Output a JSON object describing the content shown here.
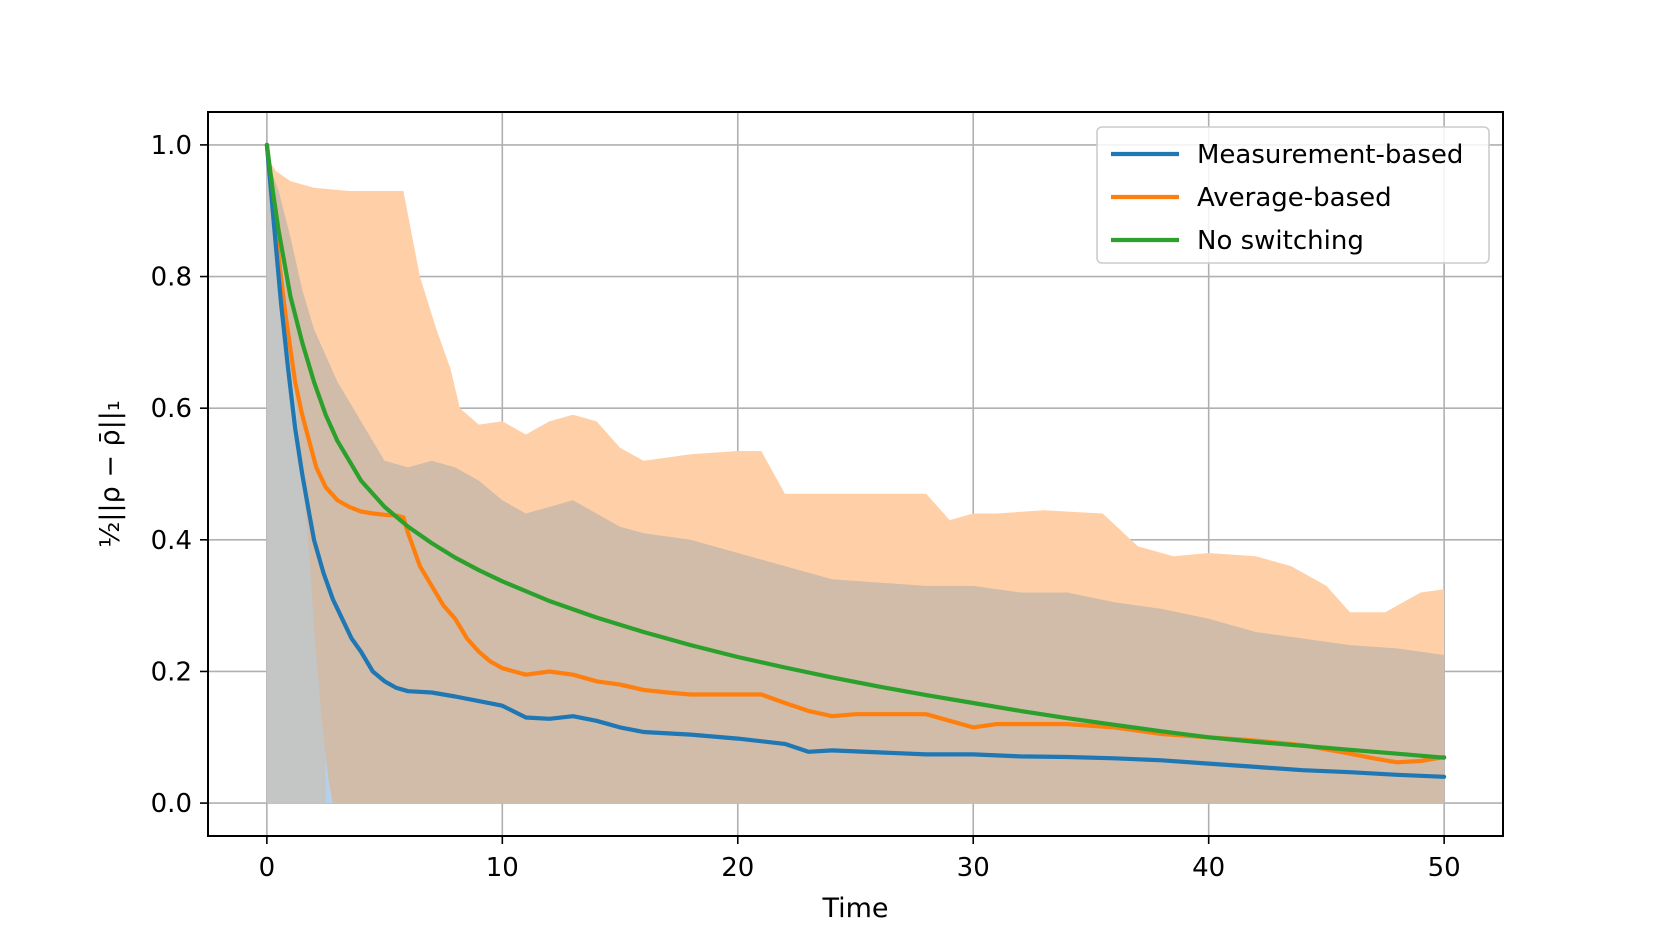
{
  "chart_data": {
    "type": "line",
    "title": "",
    "xlabel": "Time",
    "ylabel": "½||ρ − ρ̄||₁",
    "xlim": [
      -2.5,
      52.5
    ],
    "ylim": [
      -0.05,
      1.05
    ],
    "xticks": [
      0,
      10,
      20,
      30,
      40,
      50
    ],
    "xtick_labels": [
      "0",
      "10",
      "20",
      "30",
      "40",
      "50"
    ],
    "yticks": [
      0.0,
      0.2,
      0.4,
      0.6,
      0.8,
      1.0
    ],
    "ytick_labels": [
      "0.0",
      "0.2",
      "0.4",
      "0.6",
      "0.8",
      "1.0"
    ],
    "grid": true,
    "legend_position": "top-right",
    "series": [
      {
        "name": "Measurement-based",
        "color": "#1f77b4",
        "x": [
          0,
          0.3,
          0.6,
          0.9,
          1.2,
          1.5,
          1.8,
          2.0,
          2.4,
          2.8,
          3.2,
          3.6,
          4.0,
          4.5,
          5.0,
          5.5,
          6.0,
          7.0,
          8.0,
          9.0,
          10.0,
          11.0,
          12.0,
          13.0,
          14.0,
          15.0,
          16.0,
          18.0,
          20.0,
          22.0,
          23.0,
          24.0,
          26.0,
          28.0,
          30.0,
          32.0,
          34.0,
          36.0,
          38.0,
          40.0,
          42.0,
          44.0,
          46.0,
          48.0,
          50.0
        ],
        "y": [
          1.0,
          0.88,
          0.76,
          0.66,
          0.57,
          0.5,
          0.44,
          0.4,
          0.35,
          0.31,
          0.28,
          0.25,
          0.23,
          0.2,
          0.185,
          0.175,
          0.17,
          0.168,
          0.162,
          0.155,
          0.148,
          0.13,
          0.128,
          0.132,
          0.125,
          0.115,
          0.108,
          0.104,
          0.098,
          0.09,
          0.078,
          0.08,
          0.077,
          0.074,
          0.074,
          0.071,
          0.07,
          0.068,
          0.065,
          0.06,
          0.055,
          0.05,
          0.047,
          0.043,
          0.04
        ],
        "band_upper": [
          0.98,
          0.93,
          0.85,
          0.74,
          0.62,
          0.5,
          0.38,
          0.27,
          0.14,
          0.04,
          0.0
        ],
        "band_lower": [
          0.0,
          0.0,
          0.0,
          0.0,
          0.0,
          0.0,
          0.0,
          0.0,
          0.0,
          0.0,
          0.0
        ],
        "band_x": [
          0,
          0.3,
          0.6,
          0.9,
          1.2,
          1.5,
          1.8,
          2.0,
          2.3,
          2.6,
          2.8
        ]
      },
      {
        "name": "Average-based",
        "color": "#ff7f0e",
        "x": [
          0,
          0.2,
          0.4,
          0.6,
          0.8,
          1.0,
          1.2,
          1.5,
          1.8,
          2.1,
          2.5,
          3.0,
          3.5,
          4.0,
          4.5,
          5.0,
          5.5,
          5.8,
          6.0,
          6.5,
          7.0,
          7.5,
          8.0,
          8.5,
          9.0,
          9.5,
          10.0,
          10.5,
          11.0,
          12.0,
          13.0,
          14.0,
          15.0,
          16.0,
          17.0,
          18.0,
          19.0,
          20.0,
          21.0,
          22.0,
          23.0,
          24.0,
          25.0,
          26.0,
          28.0,
          29.0,
          30.0,
          31.0,
          32.0,
          34.0,
          36.0,
          38.0,
          40.0,
          42.0,
          44.0,
          46.0,
          47.0,
          48.0,
          49.0,
          50.0
        ],
        "y": [
          1.0,
          0.93,
          0.86,
          0.8,
          0.74,
          0.69,
          0.64,
          0.59,
          0.55,
          0.51,
          0.48,
          0.46,
          0.45,
          0.443,
          0.44,
          0.438,
          0.437,
          0.434,
          0.41,
          0.36,
          0.33,
          0.3,
          0.28,
          0.25,
          0.23,
          0.215,
          0.205,
          0.2,
          0.195,
          0.2,
          0.195,
          0.185,
          0.18,
          0.172,
          0.168,
          0.165,
          0.165,
          0.165,
          0.165,
          0.152,
          0.14,
          0.132,
          0.135,
          0.135,
          0.135,
          0.125,
          0.115,
          0.12,
          0.12,
          0.12,
          0.115,
          0.105,
          0.1,
          0.095,
          0.088,
          0.075,
          0.068,
          0.062,
          0.064,
          0.07
        ],
        "band_upper": [
          0.98,
          0.96,
          0.945,
          0.935,
          0.93,
          0.93,
          0.93,
          0.8,
          0.72,
          0.66,
          0.6,
          0.575,
          0.58,
          0.56,
          0.58,
          0.59,
          0.58,
          0.54,
          0.52,
          0.53,
          0.535,
          0.535,
          0.47,
          0.47,
          0.47,
          0.47,
          0.43,
          0.44,
          0.44,
          0.445,
          0.44,
          0.39,
          0.375,
          0.38,
          0.375,
          0.36,
          0.33,
          0.29,
          0.29,
          0.32,
          0.325
        ],
        "band_lower": [
          0.0,
          0.0,
          0.0,
          0.0,
          0.0,
          0.0,
          0.0,
          0.0,
          0.0,
          0.0,
          0.0,
          0.0,
          0.0,
          0.0,
          0.0,
          0.0,
          0.0,
          0.0,
          0.0,
          0.0,
          0.0,
          0.0,
          0.0,
          0.0,
          0.0,
          0.0,
          0.0,
          0.0,
          0.0,
          0.0,
          0.0,
          0.0,
          0.0,
          0.0,
          0.0,
          0.0,
          0.0,
          0.0,
          0.0,
          0.0,
          0.0
        ],
        "band_x": [
          0,
          0.4,
          1.0,
          2.0,
          3.5,
          5.0,
          5.8,
          6.5,
          7.2,
          7.8,
          8.2,
          9.0,
          10.0,
          11.0,
          12.0,
          13.0,
          14.0,
          15.0,
          16.0,
          18.0,
          20.0,
          21.0,
          22.0,
          24.0,
          26.0,
          28.0,
          29.0,
          30.0,
          31.0,
          33.0,
          35.5,
          37.0,
          38.5,
          40.0,
          42.0,
          43.5,
          45.0,
          46.0,
          47.5,
          49.0,
          50.0
        ]
      },
      {
        "name": "No switching",
        "color": "#2ca02c",
        "x": [
          0,
          0.25,
          0.5,
          0.75,
          1.0,
          1.5,
          2.0,
          2.5,
          3.0,
          3.5,
          4.0,
          5.0,
          6.0,
          7.0,
          8.0,
          9.0,
          10.0,
          12.0,
          14.0,
          16.0,
          18.0,
          20.0,
          22.0,
          24.0,
          26.0,
          28.0,
          30.0,
          32.0,
          34.0,
          36.0,
          38.0,
          40.0,
          42.0,
          44.0,
          46.0,
          48.0,
          50.0
        ],
        "y": [
          1.0,
          0.93,
          0.87,
          0.82,
          0.77,
          0.7,
          0.64,
          0.59,
          0.55,
          0.52,
          0.49,
          0.45,
          0.42,
          0.395,
          0.373,
          0.354,
          0.337,
          0.307,
          0.282,
          0.26,
          0.24,
          0.222,
          0.206,
          0.191,
          0.177,
          0.164,
          0.152,
          0.14,
          0.129,
          0.119,
          0.109,
          0.1,
          0.093,
          0.087,
          0.081,
          0.075,
          0.069
        ]
      }
    ],
    "overlap_band": {
      "x": [
        0,
        0.5,
        1.0,
        1.5,
        2.0,
        2.5,
        3.0,
        3.5,
        4.0,
        4.5,
        5.0,
        6.0,
        7.0,
        8.0,
        9.0,
        10.0,
        11.0,
        12.0,
        13.0,
        14.0,
        15.0,
        16.0,
        18.0,
        20.0,
        22.0,
        24.0,
        26.0,
        28.0,
        30.0,
        32.0,
        34.0,
        36.0,
        38.0,
        40.0,
        42.0,
        44.0,
        46.0,
        48.0,
        50.0
      ],
      "upper": [
        0.98,
        0.93,
        0.86,
        0.78,
        0.72,
        0.68,
        0.64,
        0.61,
        0.58,
        0.55,
        0.52,
        0.51,
        0.52,
        0.51,
        0.49,
        0.46,
        0.44,
        0.45,
        0.46,
        0.44,
        0.42,
        0.41,
        0.4,
        0.38,
        0.36,
        0.34,
        0.335,
        0.33,
        0.33,
        0.32,
        0.32,
        0.305,
        0.295,
        0.28,
        0.26,
        0.25,
        0.24,
        0.235,
        0.225
      ]
    }
  }
}
